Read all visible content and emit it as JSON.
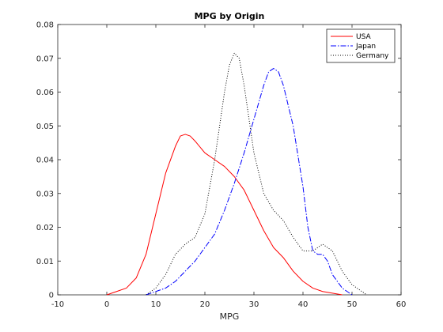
{
  "chart_data": {
    "type": "line",
    "title": "MPG by Origin",
    "xlabel": "MPG",
    "ylabel": "",
    "xlim": [
      -10,
      60
    ],
    "ylim": [
      0,
      0.08
    ],
    "xticks": [
      -10,
      0,
      10,
      20,
      30,
      40,
      50,
      60
    ],
    "yticks": [
      0,
      0.01,
      0.02,
      0.03,
      0.04,
      0.05,
      0.06,
      0.07,
      0.08
    ],
    "ytick_labels": [
      "0",
      "0.01",
      "0.02",
      "0.03",
      "0.04",
      "0.05",
      "0.06",
      "0.07",
      "0.08"
    ],
    "grid": false,
    "legend_position": "top-right",
    "series": [
      {
        "name": "USA",
        "color": "#ff0000",
        "dash": "solid",
        "points": [
          [
            0,
            0
          ],
          [
            2,
            0.001
          ],
          [
            4,
            0.002
          ],
          [
            6,
            0.005
          ],
          [
            8,
            0.012
          ],
          [
            10,
            0.024
          ],
          [
            12,
            0.036
          ],
          [
            14,
            0.044
          ],
          [
            15,
            0.047
          ],
          [
            16,
            0.0475
          ],
          [
            17,
            0.047
          ],
          [
            18,
            0.0455
          ],
          [
            20,
            0.042
          ],
          [
            22,
            0.04
          ],
          [
            24,
            0.038
          ],
          [
            26,
            0.035
          ],
          [
            28,
            0.031
          ],
          [
            30,
            0.025
          ],
          [
            32,
            0.019
          ],
          [
            34,
            0.014
          ],
          [
            36,
            0.011
          ],
          [
            38,
            0.007
          ],
          [
            40,
            0.004
          ],
          [
            42,
            0.002
          ],
          [
            44,
            0.001
          ],
          [
            46,
            0.0005
          ],
          [
            48,
            0
          ]
        ]
      },
      {
        "name": "Japan",
        "color": "#0000ff",
        "dash": "dashdot",
        "points": [
          [
            8,
            0
          ],
          [
            10,
            0.001
          ],
          [
            12,
            0.002
          ],
          [
            14,
            0.004
          ],
          [
            16,
            0.007
          ],
          [
            18,
            0.01
          ],
          [
            20,
            0.014
          ],
          [
            22,
            0.018
          ],
          [
            24,
            0.025
          ],
          [
            26,
            0.033
          ],
          [
            28,
            0.042
          ],
          [
            30,
            0.052
          ],
          [
            32,
            0.062
          ],
          [
            33,
            0.066
          ],
          [
            34,
            0.067
          ],
          [
            35,
            0.066
          ],
          [
            36,
            0.062
          ],
          [
            38,
            0.05
          ],
          [
            40,
            0.032
          ],
          [
            41,
            0.02
          ],
          [
            42,
            0.013
          ],
          [
            43,
            0.012
          ],
          [
            44,
            0.012
          ],
          [
            45,
            0.01
          ],
          [
            46,
            0.006
          ],
          [
            47,
            0.004
          ],
          [
            48,
            0.002
          ],
          [
            49,
            0.001
          ],
          [
            50,
            0
          ]
        ]
      },
      {
        "name": "Germany",
        "color": "#000000",
        "dash": "dotted",
        "points": [
          [
            8,
            0
          ],
          [
            10,
            0.002
          ],
          [
            12,
            0.006
          ],
          [
            14,
            0.012
          ],
          [
            16,
            0.015
          ],
          [
            18,
            0.017
          ],
          [
            20,
            0.024
          ],
          [
            22,
            0.04
          ],
          [
            24,
            0.06
          ],
          [
            25,
            0.068
          ],
          [
            26,
            0.0715
          ],
          [
            27,
            0.07
          ],
          [
            28,
            0.062
          ],
          [
            30,
            0.042
          ],
          [
            32,
            0.03
          ],
          [
            34,
            0.025
          ],
          [
            36,
            0.022
          ],
          [
            38,
            0.017
          ],
          [
            40,
            0.013
          ],
          [
            42,
            0.013
          ],
          [
            44,
            0.015
          ],
          [
            46,
            0.013
          ],
          [
            48,
            0.007
          ],
          [
            50,
            0.003
          ],
          [
            52,
            0.001
          ],
          [
            53,
            0
          ]
        ]
      }
    ]
  }
}
